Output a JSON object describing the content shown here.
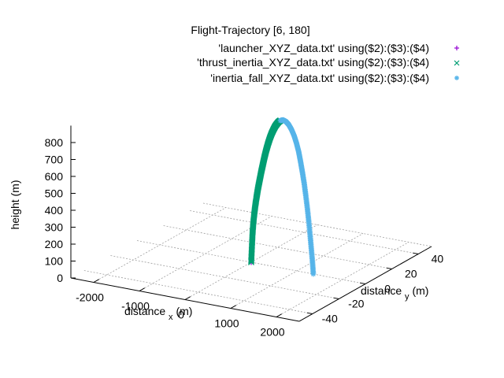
{
  "chart_data": {
    "type": "scatter",
    "projection": "3d",
    "title": "Flight-Trajectory [6, 180]",
    "axes": {
      "x": {
        "label": "distance",
        "subscript": "x",
        "unit": "(m)",
        "range": [
          -2500,
          2500
        ],
        "ticks": [
          "-2000",
          "-1000",
          "0",
          "1000",
          "2000"
        ]
      },
      "y": {
        "label": "distance",
        "subscript": "y",
        "unit": "(m)",
        "range": [
          -50,
          50
        ],
        "ticks": [
          "-40",
          "-20",
          "0",
          "20",
          "40"
        ]
      },
      "z": {
        "label": "height (m)",
        "range": [
          0,
          900
        ],
        "ticks": [
          "0",
          "100",
          "200",
          "300",
          "400",
          "500",
          "600",
          "700",
          "800"
        ]
      }
    },
    "grid": true,
    "legend_position": "top-right",
    "series": [
      {
        "name": "'launcher_XYZ_data.txt' using($2):($3):($4)",
        "marker": "+",
        "color": "#9400d3",
        "points": [
          [
            0,
            0,
            0
          ]
        ]
      },
      {
        "name": "'thrust_inertia_XYZ_data.txt' using($2):($3):($4)",
        "marker": "x",
        "color": "#009e73",
        "points": [
          [
            0,
            0,
            0
          ],
          [
            10,
            0,
            60
          ],
          [
            20,
            0,
            120
          ],
          [
            30,
            0,
            175
          ],
          [
            45,
            0,
            230
          ],
          [
            65,
            0,
            285
          ],
          [
            90,
            0,
            340
          ],
          [
            120,
            0,
            395
          ],
          [
            150,
            0,
            445
          ],
          [
            185,
            0,
            495
          ],
          [
            220,
            0,
            545
          ],
          [
            255,
            0,
            590
          ],
          [
            290,
            0,
            635
          ],
          [
            330,
            0,
            680
          ],
          [
            370,
            0,
            720
          ],
          [
            410,
            0,
            755
          ],
          [
            450,
            0,
            785
          ],
          [
            490,
            0,
            810
          ],
          [
            525,
            0,
            830
          ],
          [
            560,
            0,
            845
          ],
          [
            600,
            0,
            860
          ],
          [
            640,
            0,
            870
          ]
        ]
      },
      {
        "name": "'inertia_fall_XYZ_data.txt' using($2):($3):($4)",
        "marker": "*",
        "color": "#56b4e9",
        "points": [
          [
            640,
            0,
            870
          ],
          [
            700,
            0,
            876
          ],
          [
            760,
            0,
            870
          ],
          [
            820,
            0,
            855
          ],
          [
            880,
            0,
            830
          ],
          [
            940,
            0,
            795
          ],
          [
            990,
            0,
            755
          ],
          [
            1040,
            0,
            705
          ],
          [
            1080,
            0,
            650
          ],
          [
            1120,
            0,
            590
          ],
          [
            1160,
            0,
            525
          ],
          [
            1195,
            0,
            455
          ],
          [
            1230,
            0,
            380
          ],
          [
            1260,
            0,
            305
          ],
          [
            1290,
            0,
            225
          ],
          [
            1315,
            0,
            150
          ],
          [
            1340,
            0,
            75
          ],
          [
            1360,
            0,
            0
          ]
        ]
      }
    ]
  }
}
